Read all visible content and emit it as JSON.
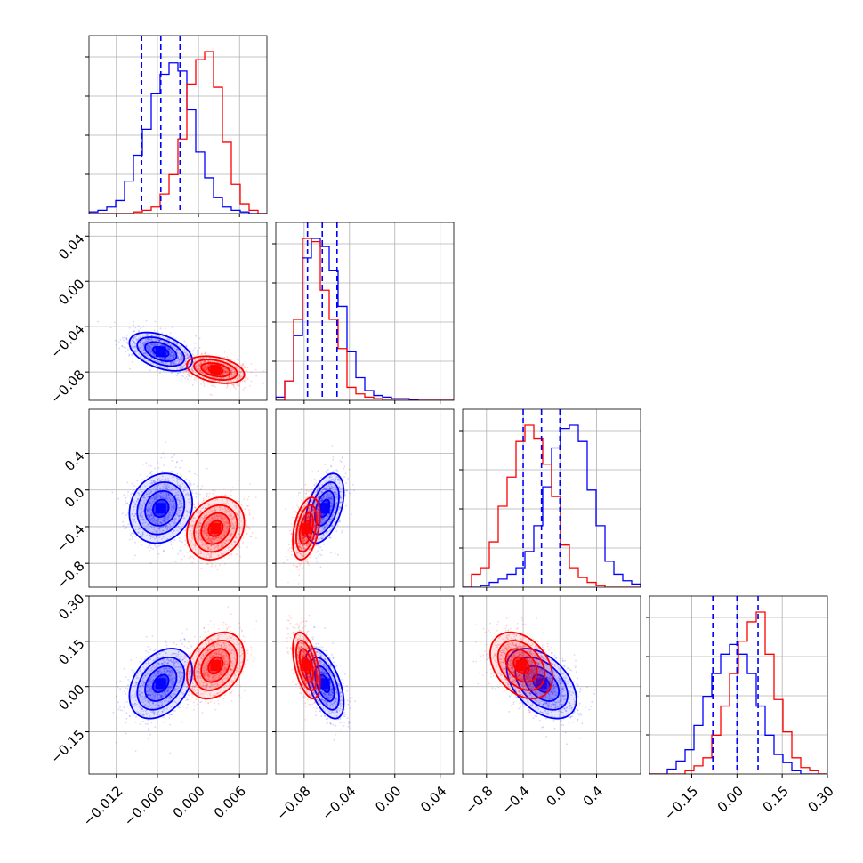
{
  "chart_data": {
    "type": "corner",
    "grid": true,
    "colors": {
      "series_a": "#0000ff",
      "series_b": "#ff0000",
      "quantile_lines": "#0000ff"
    },
    "parameters": [
      {
        "range": [
          -0.016,
          0.01
        ],
        "ticks": [
          -0.012,
          -0.006,
          0.0,
          0.006
        ],
        "tick_labels": [
          "−0.012",
          "−0.006",
          "0.000",
          "0.006"
        ],
        "quantiles": [
          -0.0083,
          -0.0055,
          -0.0027
        ]
      },
      {
        "range": [
          -0.105,
          0.052
        ],
        "ticks": [
          -0.08,
          -0.04,
          0.0,
          0.04
        ],
        "tick_labels": [
          "−0.08",
          "−0.04",
          "0.00",
          "0.04"
        ],
        "quantiles": [
          -0.077,
          -0.064,
          -0.051
        ]
      },
      {
        "range": [
          -1.06,
          0.88
        ],
        "ticks": [
          -0.8,
          -0.4,
          0.0,
          0.4
        ],
        "tick_labels": [
          "−0.8",
          "−0.4",
          "0.0",
          "0.4"
        ],
        "quantiles": [
          -0.4,
          -0.2,
          0.0
        ]
      },
      {
        "range": [
          -0.29,
          0.3
        ],
        "ticks": [
          -0.15,
          0.0,
          0.15,
          0.3
        ],
        "tick_labels": [
          "−0.15",
          "0.00",
          "0.15",
          "0.30"
        ],
        "quantiles": [
          -0.08,
          0.0,
          0.07
        ]
      }
    ],
    "series": [
      {
        "color": "#0000ff",
        "hist": [
          [
            0.01,
            0.02,
            0.04,
            0.08,
            0.2,
            0.36,
            0.52,
            0.74,
            0.86,
            0.93,
            0.88,
            0.64,
            0.38,
            0.22,
            0.1,
            0.04,
            0.02,
            0.01,
            0,
            0
          ],
          [
            0.02,
            0.12,
            0.4,
            0.88,
            1.0,
            0.95,
            0.8,
            0.58,
            0.3,
            0.14,
            0.06,
            0.03,
            0.02,
            0.01,
            0.01,
            0.005,
            0,
            0,
            0,
            0
          ],
          [
            0,
            0,
            0.01,
            0.03,
            0.05,
            0.08,
            0.12,
            0.22,
            0.38,
            0.62,
            0.86,
            0.98,
            1.0,
            0.9,
            0.6,
            0.38,
            0.16,
            0.08,
            0.04,
            0.02
          ],
          [
            0,
            0,
            0.03,
            0.08,
            0.15,
            0.3,
            0.48,
            0.62,
            0.74,
            0.8,
            0.74,
            0.62,
            0.42,
            0.24,
            0.12,
            0.07,
            0.02,
            0,
            0,
            0
          ]
        ],
        "mean": [
          -0.0055,
          -0.062,
          -0.2,
          0.01
        ],
        "sigma": [
          0.0023,
          0.0085,
          0.19,
          0.058
        ],
        "corr": [
          [
            1,
            -0.45,
            0.15,
            0.35
          ],
          [
            -0.45,
            1,
            0.45,
            -0.55
          ],
          [
            0.15,
            0.45,
            1,
            -0.45
          ],
          [
            0.35,
            -0.55,
            -0.45,
            1
          ]
        ]
      },
      {
        "color": "#ff0000",
        "hist": [
          [
            0,
            0,
            0,
            0,
            0,
            0.01,
            0.02,
            0.04,
            0.12,
            0.24,
            0.46,
            0.8,
            0.95,
            1.0,
            0.78,
            0.44,
            0.18,
            0.06,
            0.02,
            0
          ],
          [
            0,
            0.12,
            0.5,
            1.0,
            0.98,
            0.68,
            0.5,
            0.32,
            0.08,
            0.04,
            0.02,
            0.01,
            0,
            0,
            0,
            0,
            0,
            0,
            0,
            0
          ],
          [
            0,
            0.08,
            0.12,
            0.28,
            0.5,
            0.68,
            0.9,
            1.0,
            0.92,
            0.76,
            0.56,
            0.26,
            0.12,
            0.06,
            0.03,
            0.01,
            0,
            0,
            0,
            0
          ],
          [
            0,
            0,
            0,
            0,
            0.02,
            0.05,
            0.1,
            0.24,
            0.42,
            0.62,
            0.82,
            0.94,
            1.0,
            0.74,
            0.46,
            0.26,
            0.1,
            0.04,
            0.02,
            0
          ]
        ],
        "mean": [
          0.0025,
          -0.078,
          -0.42,
          0.07
        ],
        "sigma": [
          0.0021,
          0.006,
          0.17,
          0.055
        ],
        "corr": [
          [
            1,
            -0.35,
            0.2,
            0.3
          ],
          [
            -0.35,
            1,
            0.4,
            -0.5
          ],
          [
            0.2,
            0.4,
            1,
            -0.35
          ],
          [
            0.3,
            -0.5,
            -0.35,
            1
          ]
        ]
      }
    ]
  }
}
